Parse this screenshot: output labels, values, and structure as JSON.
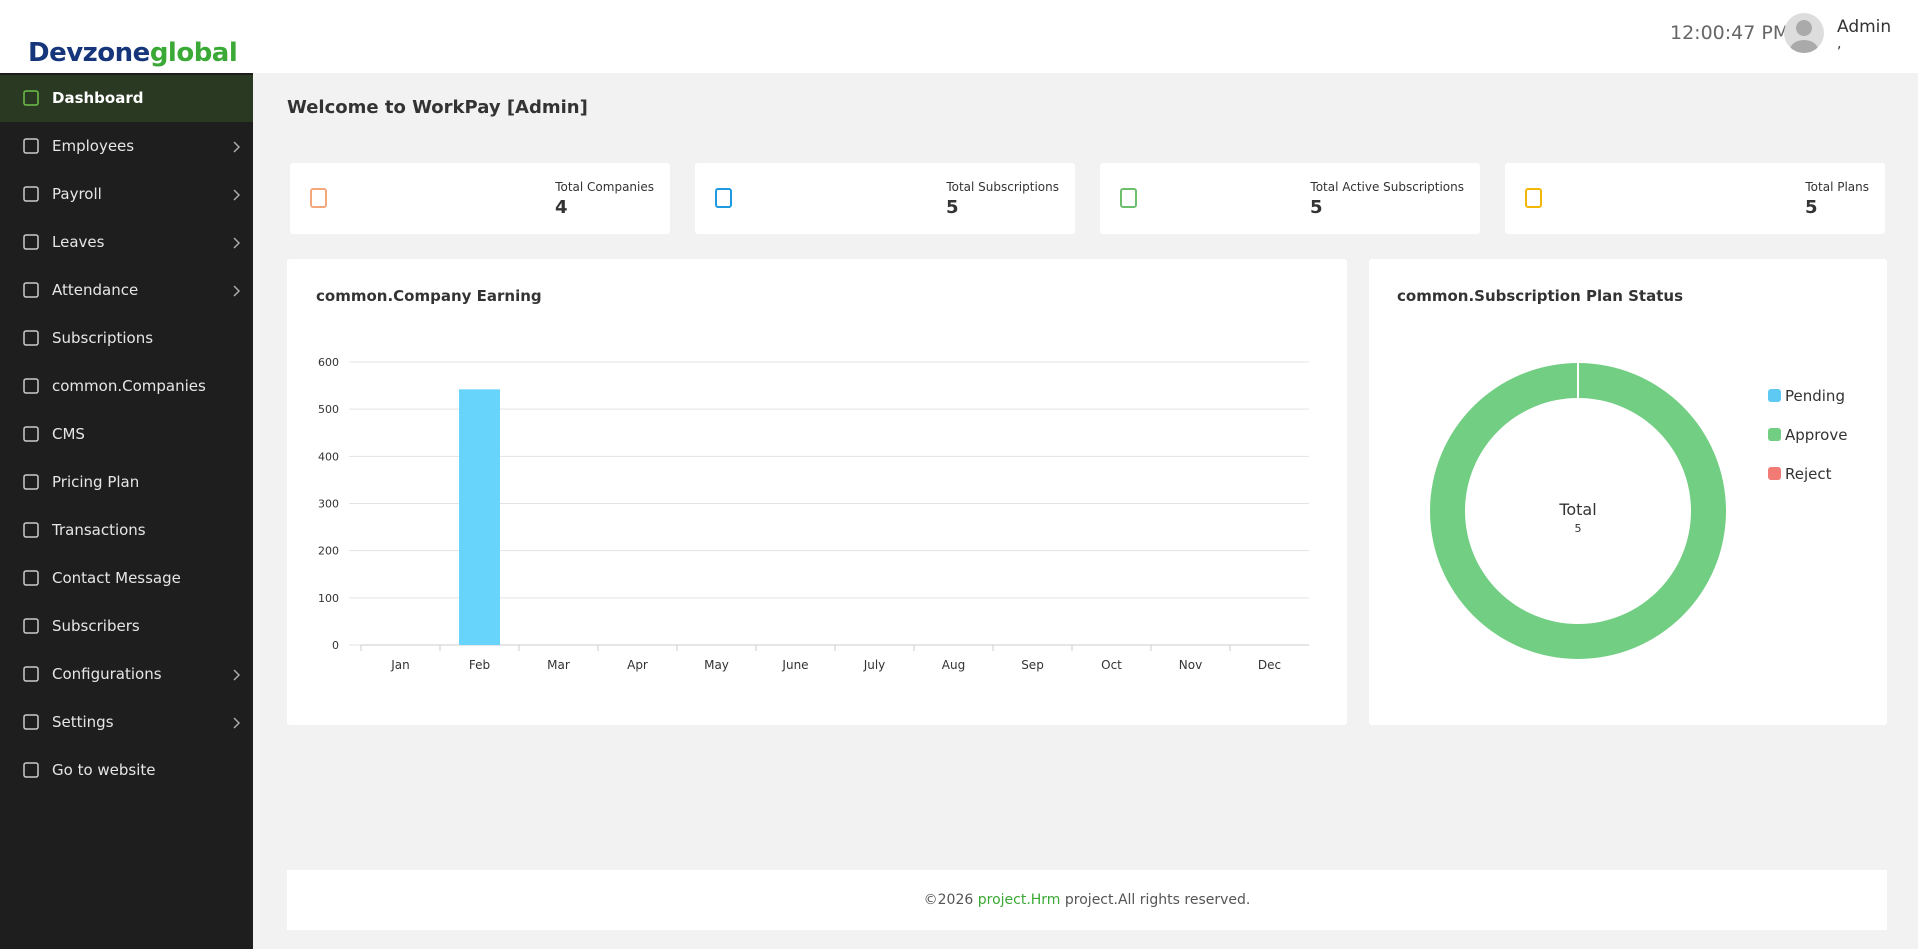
{
  "brand": {
    "part1": "Devzone",
    "part2": "global"
  },
  "header": {
    "time": "12:00:47 PM",
    "user": "Admin",
    "user_sub": ","
  },
  "sidebar": {
    "items": [
      {
        "label": "Dashboard",
        "submenu": false,
        "active": true
      },
      {
        "label": "Employees",
        "submenu": true,
        "active": false
      },
      {
        "label": "Payroll",
        "submenu": true,
        "active": false
      },
      {
        "label": "Leaves",
        "submenu": true,
        "active": false
      },
      {
        "label": "Attendance",
        "submenu": true,
        "active": false
      },
      {
        "label": "Subscriptions",
        "submenu": false,
        "active": false
      },
      {
        "label": "common.Companies",
        "submenu": false,
        "active": false
      },
      {
        "label": "CMS",
        "submenu": false,
        "active": false
      },
      {
        "label": "Pricing Plan",
        "submenu": false,
        "active": false
      },
      {
        "label": "Transactions",
        "submenu": false,
        "active": false
      },
      {
        "label": "Contact Message",
        "submenu": false,
        "active": false
      },
      {
        "label": "Subscribers",
        "submenu": false,
        "active": false
      },
      {
        "label": "Configurations",
        "submenu": true,
        "active": false
      },
      {
        "label": "Settings",
        "submenu": true,
        "active": false
      },
      {
        "label": "Go to website",
        "submenu": false,
        "active": false
      }
    ]
  },
  "welcome": "Welcome to WorkPay [Admin]",
  "stats": [
    {
      "label": "Total Companies",
      "value": 4,
      "color": "#f4a77a"
    },
    {
      "label": "Total Subscriptions",
      "value": 5,
      "color": "#1e9be0"
    },
    {
      "label": "Total Active Subscriptions",
      "value": 5,
      "color": "#6cbf6c"
    },
    {
      "label": "Total Plans",
      "value": 5,
      "color": "#f2b705"
    }
  ],
  "chart_data": [
    {
      "type": "bar",
      "title": "common.Company Earning",
      "categories": [
        "Jan",
        "Feb",
        "Mar",
        "Apr",
        "May",
        "June",
        "July",
        "Aug",
        "Sep",
        "Oct",
        "Nov",
        "Dec"
      ],
      "values": [
        0,
        542,
        0,
        0,
        0,
        0,
        0,
        0,
        0,
        0,
        0,
        0
      ],
      "color": "#67d4fc",
      "ylim": [
        0,
        600
      ],
      "yticks": [
        0,
        100,
        200,
        300,
        400,
        500,
        600
      ],
      "grid": true
    },
    {
      "type": "donut",
      "title": "common.Subscription Plan Status",
      "categories": [
        "Pending",
        "Approve",
        "Reject"
      ],
      "values": [
        0,
        5,
        0
      ],
      "colors": [
        "#5ec9f3",
        "#72ce82",
        "#f37b76"
      ],
      "center_label": "Total",
      "center_value": 5,
      "legend": "right"
    }
  ],
  "footer": {
    "prefix": "©2026",
    "link": "project.Hrm",
    "suffix": "project.All rights reserved."
  }
}
